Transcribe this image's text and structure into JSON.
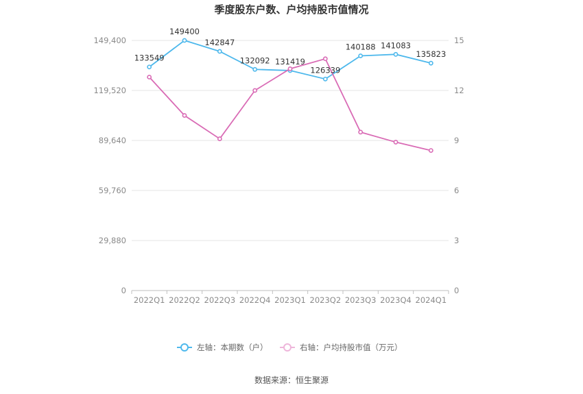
{
  "chart_data": {
    "type": "line",
    "title": "季度股东户数、户均持股市值情况",
    "categories": [
      "2022Q1",
      "2022Q2",
      "2022Q3",
      "2022Q4",
      "2023Q1",
      "2023Q2",
      "2023Q3",
      "2023Q4",
      "2024Q1"
    ],
    "series": [
      {
        "name": "左轴：本期数（户）",
        "axis": "left",
        "color": "#4db8ec",
        "values": [
          133549,
          149400,
          142847,
          132092,
          131419,
          126339,
          140188,
          141083,
          135823
        ],
        "data_labels": [
          "133549",
          "149400",
          "142847",
          "132092",
          "131419",
          "126339",
          "140188",
          "141083",
          "135823"
        ]
      },
      {
        "name": "右轴：户均持股市值（万元）",
        "axis": "right",
        "color": "#d96bb5",
        "values": [
          12.8,
          10.5,
          9.1,
          12.0,
          13.3,
          13.9,
          9.5,
          8.9,
          8.4
        ]
      }
    ],
    "y_left": {
      "ylim": [
        0,
        149400
      ],
      "ticks": [
        "0",
        "29,880",
        "59,760",
        "89,640",
        "119,520",
        "149,400"
      ]
    },
    "y_right": {
      "ylim": [
        0,
        15
      ],
      "ticks": [
        "0",
        "3",
        "6",
        "9",
        "12",
        "15"
      ]
    },
    "grid": true,
    "legend_position": "bottom"
  },
  "source_text": "数据来源：恒生聚源"
}
